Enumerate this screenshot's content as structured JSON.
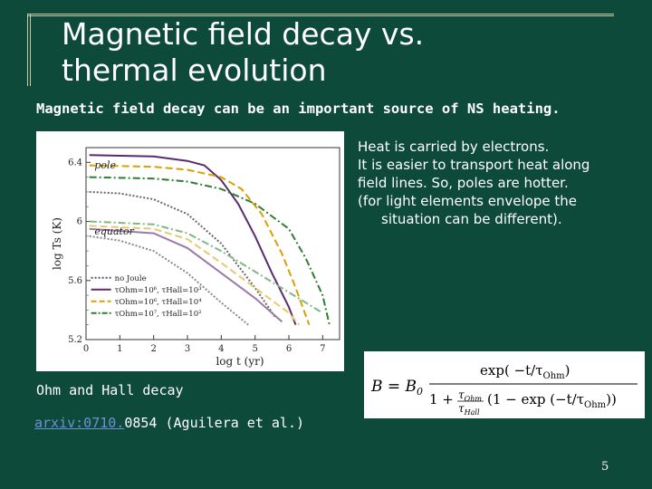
{
  "slide": {
    "title_line1": "Magnetic field decay vs.",
    "title_line2": "thermal evolution",
    "subtitle": "Magnetic field decay can be an important source of NS heating.",
    "heat_lines": [
      "Heat is carried by electrons.",
      "It is easier to transport heat along",
      "field lines. So, poles are hotter.",
      "(for light elements envelope the",
      "situation can be different)."
    ],
    "ohm_hall": "Ohm and Hall decay",
    "arxiv_link": "arxiv:0710.",
    "arxiv_rest": "0854 (Aguilera et al.)",
    "page_number": "5"
  },
  "chart_data": {
    "type": "line",
    "ylabel": "log Ts (K)",
    "xlabel": "log t (yr)",
    "x_ticks": [
      "0",
      "1",
      "2",
      "3",
      "4",
      "5",
      "6",
      "7"
    ],
    "y_ticks": [
      "6.4",
      "6",
      "5.6",
      "5.2"
    ],
    "xlim": [
      0,
      7.5
    ],
    "ylim": [
      5.2,
      6.5
    ],
    "annotations": [
      "pole",
      "equator"
    ],
    "legend": {
      "placement": "bottom-left",
      "entries": [
        {
          "label": "no Joule",
          "style": "dotted",
          "color": "#555555"
        },
        {
          "label": "τOhm=10⁶, τHall=10³",
          "style": "solid",
          "color": "#5a2a6e"
        },
        {
          "label": "τOhm=10⁶, τHall=10⁴",
          "style": "dashed",
          "color": "#d9a000"
        },
        {
          "label": "τOhm=10⁷, τHall=10²",
          "style": "dashdot",
          "color": "#2e7d32"
        }
      ]
    },
    "series": [
      {
        "kind": "no-joule-pole",
        "color": "#666666",
        "dash": "2,2",
        "points": [
          [
            0.1,
            6.2
          ],
          [
            1,
            6.19
          ],
          [
            2,
            6.15
          ],
          [
            3,
            6.05
          ],
          [
            4,
            5.85
          ],
          [
            5,
            5.55
          ],
          [
            5.6,
            5.35
          ]
        ]
      },
      {
        "kind": "ohm6-hall3-pole",
        "color": "#5a2a6e",
        "dash": "",
        "points": [
          [
            0.1,
            6.45
          ],
          [
            2,
            6.44
          ],
          [
            3,
            6.41
          ],
          [
            3.5,
            6.38
          ],
          [
            4,
            6.28
          ],
          [
            4.5,
            6.12
          ],
          [
            5,
            5.9
          ],
          [
            5.5,
            5.65
          ],
          [
            6,
            5.42
          ],
          [
            6.2,
            5.3
          ]
        ]
      },
      {
        "kind": "ohm6-hall4-pole",
        "color": "#d9a000",
        "dash": "8,4",
        "points": [
          [
            0.1,
            6.38
          ],
          [
            2,
            6.37
          ],
          [
            3,
            6.35
          ],
          [
            4,
            6.3
          ],
          [
            4.6,
            6.22
          ],
          [
            5.2,
            6.05
          ],
          [
            5.8,
            5.78
          ],
          [
            6.2,
            5.55
          ],
          [
            6.6,
            5.3
          ]
        ]
      },
      {
        "kind": "ohm7-hall2-pole",
        "color": "#2e7d32",
        "dash": "8,3,2,3",
        "points": [
          [
            0.1,
            6.3
          ],
          [
            2,
            6.29
          ],
          [
            3,
            6.27
          ],
          [
            4,
            6.22
          ],
          [
            5,
            6.12
          ],
          [
            6,
            5.95
          ],
          [
            6.5,
            5.75
          ],
          [
            7,
            5.5
          ],
          [
            7.2,
            5.3
          ]
        ]
      },
      {
        "kind": "no-joule-equator",
        "color": "#888888",
        "dash": "2,2",
        "points": [
          [
            0.1,
            5.9
          ],
          [
            1,
            5.87
          ],
          [
            2,
            5.8
          ],
          [
            3,
            5.65
          ],
          [
            4,
            5.45
          ],
          [
            4.8,
            5.3
          ]
        ]
      },
      {
        "kind": "ohm6-hall3-equator",
        "color": "#9a7aa8",
        "dash": "",
        "points": [
          [
            0.1,
            5.95
          ],
          [
            2,
            5.92
          ],
          [
            3,
            5.82
          ],
          [
            4,
            5.65
          ],
          [
            5,
            5.48
          ],
          [
            5.8,
            5.32
          ]
        ]
      },
      {
        "kind": "ohm6-hall4-equator",
        "color": "#e8c870",
        "dash": "8,4",
        "points": [
          [
            0.1,
            5.97
          ],
          [
            2,
            5.95
          ],
          [
            3,
            5.88
          ],
          [
            4,
            5.72
          ],
          [
            5,
            5.55
          ],
          [
            6,
            5.38
          ],
          [
            6.3,
            5.3
          ]
        ]
      },
      {
        "kind": "ohm7-hall2-equator",
        "color": "#7fb882",
        "dash": "8,3,2,3",
        "points": [
          [
            0.1,
            6.0
          ],
          [
            2,
            5.98
          ],
          [
            3,
            5.92
          ],
          [
            4,
            5.8
          ],
          [
            5,
            5.66
          ],
          [
            6,
            5.52
          ],
          [
            7,
            5.38
          ]
        ]
      }
    ]
  },
  "formula": {
    "lhs": "B = B",
    "sub0": "0",
    "numer": "exp( −t/τ",
    "numer_sub": "Ohm",
    "numer_end": ")",
    "denom_1": "1 +",
    "frac_top": "τ",
    "frac_top_sub": "Ohm",
    "frac_bot": "τ",
    "frac_bot_sub": "Hall",
    "denom_2": "(1 − exp (−t/τ",
    "denom_sub": "Ohm",
    "denom_end": "))"
  }
}
